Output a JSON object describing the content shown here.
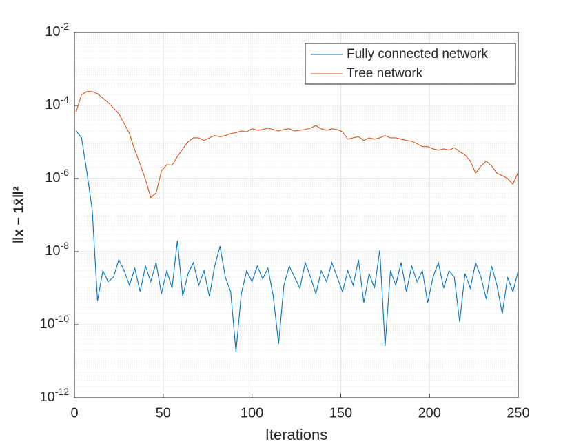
{
  "chart_data": {
    "type": "line",
    "x": [
      1,
      4,
      7,
      10,
      13,
      16,
      19,
      22,
      25,
      28,
      31,
      34,
      37,
      40,
      43,
      46,
      49,
      52,
      55,
      58,
      61,
      64,
      67,
      70,
      73,
      76,
      79,
      82,
      85,
      88,
      91,
      94,
      97,
      100,
      103,
      106,
      109,
      112,
      115,
      118,
      121,
      124,
      127,
      130,
      133,
      136,
      139,
      142,
      145,
      148,
      151,
      154,
      157,
      160,
      163,
      166,
      169,
      172,
      175,
      178,
      181,
      184,
      187,
      190,
      193,
      196,
      199,
      202,
      205,
      208,
      211,
      214,
      217,
      220,
      223,
      226,
      229,
      232,
      235,
      238,
      241,
      244,
      247,
      250
    ],
    "series": [
      {
        "name": "Fully connected network",
        "color": "#0072bd",
        "values": [
          2e-05,
          1.3e-05,
          1.5e-06,
          1.4e-07,
          4.5e-10,
          3e-09,
          1.5e-09,
          2e-09,
          6e-09,
          3e-09,
          1.2e-09,
          3.5e-09,
          8e-10,
          4e-09,
          1.5e-09,
          5e-09,
          7e-10,
          3e-09,
          1e-09,
          2e-08,
          6e-10,
          2.5e-09,
          5e-09,
          1.2e-09,
          3e-09,
          6e-10,
          4e-09,
          1.4e-08,
          2e-09,
          8e-10,
          1.8e-11,
          7e-10,
          3e-09,
          1.5e-09,
          4e-09,
          1.8e-09,
          3.5e-09,
          6e-10,
          3e-11,
          1.2e-09,
          4e-09,
          2e-09,
          1e-09,
          5e-09,
          2e-09,
          7e-10,
          3e-09,
          1.5e-09,
          5e-09,
          2e-09,
          8e-10,
          3e-09,
          1.2e-09,
          6e-09,
          4e-10,
          2.5e-09,
          1e-09,
          1.1e-08,
          2.6e-11,
          3e-09,
          1.2e-09,
          5e-09,
          8e-10,
          4e-09,
          1.5e-09,
          3e-09,
          4e-10,
          2e-09,
          5e-09,
          1e-09,
          3e-09,
          2e-09,
          1.2e-10,
          2.5e-09,
          1e-09,
          5e-09,
          2e-09,
          5e-10,
          4e-09,
          1.2e-09,
          2e-10,
          2e-09,
          8e-10,
          3e-09
        ]
      },
      {
        "name": "Tree network",
        "color": "#d95319",
        "values": [
          6.8e-05,
          0.0002,
          0.00024,
          0.00024,
          0.00021,
          0.00016,
          0.00012,
          8.5e-05,
          6e-05,
          3.2e-05,
          1.7e-05,
          6e-06,
          2.5e-06,
          9.5e-07,
          3e-07,
          4e-07,
          1.6e-06,
          2.4e-06,
          2.3e-06,
          4e-06,
          6.5e-06,
          1e-05,
          1.3e-05,
          1.3e-05,
          1.1e-05,
          1.3e-05,
          1.5e-05,
          1.4e-05,
          1.5e-05,
          1.7e-05,
          1.8e-05,
          2e-05,
          1.9e-05,
          2.3e-05,
          2.1e-05,
          2.2e-05,
          2.4e-05,
          2.2e-05,
          2e-05,
          2.2e-05,
          2.3e-05,
          2e-05,
          2.1e-05,
          2.2e-05,
          2.4e-05,
          2.8e-05,
          2.3e-05,
          2.1e-05,
          2.3e-05,
          2.2e-05,
          1.9e-05,
          1.2e-05,
          1.3e-05,
          1.4e-05,
          1.1e-05,
          1.3e-05,
          1.2e-05,
          1.3e-05,
          1.5e-05,
          1.3e-05,
          1.3e-05,
          1.2e-05,
          1.1e-05,
          1.05e-05,
          9e-06,
          7.5e-06,
          7.5e-06,
          6.5e-06,
          6e-06,
          6.5e-06,
          6e-06,
          7e-06,
          5.5e-06,
          4.4e-06,
          3e-06,
          1.4e-06,
          2.2e-06,
          3e-06,
          2.2e-06,
          1.4e-06,
          1.2e-06,
          1e-06,
          7e-07,
          1.5e-06
        ]
      }
    ],
    "xlabel": "Iterations",
    "ylabel": "‖x − 1x̄‖²",
    "xlim": [
      0,
      250
    ],
    "xticks": [
      0,
      50,
      100,
      150,
      200,
      250
    ],
    "ylim": [
      1e-12,
      0.01
    ],
    "yscale": "log",
    "yticks": [
      {
        "value": 1e-12,
        "label": "10-12"
      },
      {
        "value": 1e-10,
        "label": "10-10"
      },
      {
        "value": 1e-08,
        "label": "10-8"
      },
      {
        "value": 1e-06,
        "label": "10-6"
      },
      {
        "value": 0.0001,
        "label": "10-4"
      },
      {
        "value": 0.01,
        "label": "10-2"
      }
    ],
    "grid": true,
    "minor_grid": true,
    "legend": "northeast"
  }
}
